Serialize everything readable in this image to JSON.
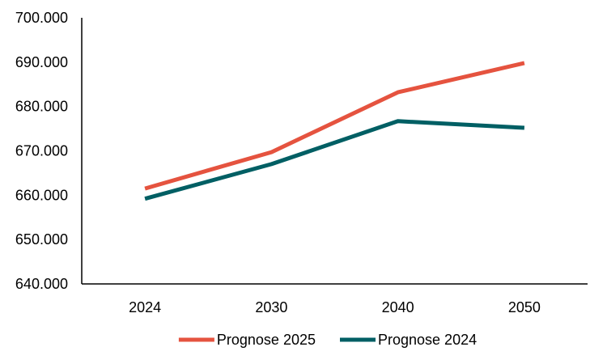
{
  "chart_data": {
    "type": "line",
    "title": "",
    "xlabel": "",
    "ylabel": "",
    "categories": [
      "2024",
      "2030",
      "2040",
      "2050"
    ],
    "y_ticks": [
      "640.000",
      "650.000",
      "660.000",
      "670.000",
      "680.000",
      "690.000",
      "700.000"
    ],
    "ylim": [
      640000,
      700000
    ],
    "grid": false,
    "legend_position": "bottom",
    "series": [
      {
        "name": "Prognose 2025",
        "color": "#E5533F",
        "values": [
          661500,
          669700,
          683200,
          689800
        ]
      },
      {
        "name": "Prognose 2024",
        "color": "#005F64",
        "values": [
          659200,
          667000,
          676700,
          675200
        ]
      }
    ]
  }
}
